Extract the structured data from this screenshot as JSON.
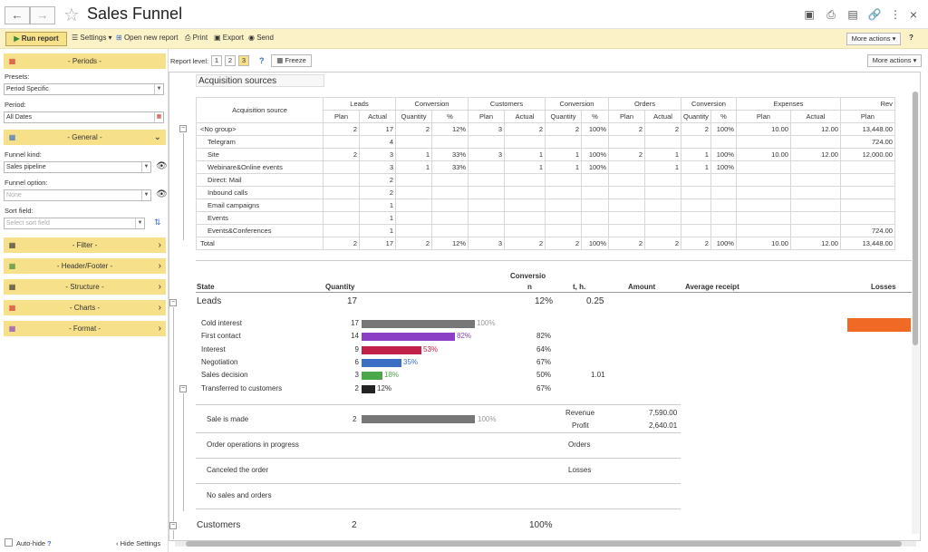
{
  "window": {
    "title": "Sales Funnel"
  },
  "command_bar": {
    "run_report": "Run report",
    "settings": "Settings",
    "open_new_report": "Open new report",
    "print": "Print",
    "export": "Export",
    "send": "Send",
    "more_actions": "More actions",
    "help": "?"
  },
  "report_bar": {
    "report_level_label": "Report level:",
    "levels": [
      "1",
      "2",
      "3"
    ],
    "help": "?",
    "freeze": "Freeze",
    "more_actions": "More actions"
  },
  "sidebar": {
    "periods": "- Periods -",
    "presets_label": "Presets:",
    "presets_value": "Period Specific",
    "period_label": "Period:",
    "period_value": "All Dates",
    "general": "- General -",
    "funnel_kind_label": "Funnel kind:",
    "funnel_kind_value": "Sales pipeline",
    "funnel_option_label": "Funnel option:",
    "funnel_option_placeholder": "None",
    "sort_field_label": "Sort field:",
    "sort_field_placeholder": "Select sort field",
    "filter": "- Filter -",
    "header_footer": "- Header/Footer -",
    "structure": "- Structure -",
    "charts": "- Charts -",
    "format": "- Format -",
    "auto_hide": "Auto-hide",
    "auto_hide_help": "?",
    "hide_settings": "Hide Settings"
  },
  "sources": {
    "title": "Acquisition sources",
    "col_source": "Acquisition source",
    "groups": [
      "Leads",
      "Conversion",
      "Customers",
      "Conversion",
      "Orders",
      "Conversion",
      "Expenses",
      "Rev"
    ],
    "subheaders": [
      "Plan",
      "Actual",
      "Quantity",
      "%",
      "Plan",
      "Actual",
      "Quantity",
      "%",
      "Plan",
      "Actual",
      "Quantity",
      "%",
      "Plan",
      "Actual",
      "Plan"
    ],
    "rows": [
      {
        "name": "<No group>",
        "cells": [
          "2",
          "17",
          "2",
          "12%",
          "3",
          "2",
          "2",
          "100%",
          "2",
          "2",
          "2",
          "100%",
          "10.00",
          "12.00",
          "13,448.00"
        ]
      },
      {
        "name": "Telegram",
        "cells": [
          "",
          "4",
          "",
          "",
          "",
          "",
          "",
          "",
          "",
          "",
          "",
          "",
          "",
          "",
          "724.00"
        ]
      },
      {
        "name": "Site",
        "cells": [
          "2",
          "3",
          "1",
          "33%",
          "3",
          "1",
          "1",
          "100%",
          "2",
          "1",
          "1",
          "100%",
          "10.00",
          "12.00",
          "12,000.00"
        ]
      },
      {
        "name": "Webinare&Online events",
        "cells": [
          "",
          "3",
          "1",
          "33%",
          "",
          "1",
          "1",
          "100%",
          "",
          "1",
          "1",
          "100%",
          "",
          "",
          ""
        ]
      },
      {
        "name": "Direct: Mail",
        "cells": [
          "",
          "2",
          "",
          "",
          "",
          "",
          "",
          "",
          "",
          "",
          "",
          "",
          "",
          "",
          ""
        ]
      },
      {
        "name": "Inbound calls",
        "cells": [
          "",
          "2",
          "",
          "",
          "",
          "",
          "",
          "",
          "",
          "",
          "",
          "",
          "",
          "",
          ""
        ]
      },
      {
        "name": "Email campaigns",
        "cells": [
          "",
          "1",
          "",
          "",
          "",
          "",
          "",
          "",
          "",
          "",
          "",
          "",
          "",
          "",
          ""
        ]
      },
      {
        "name": "Events",
        "cells": [
          "",
          "1",
          "",
          "",
          "",
          "",
          "",
          "",
          "",
          "",
          "",
          "",
          "",
          "",
          ""
        ]
      },
      {
        "name": "Events&Conferences",
        "cells": [
          "",
          "1",
          "",
          "",
          "",
          "",
          "",
          "",
          "",
          "",
          "",
          "",
          "",
          "",
          "724.00"
        ]
      }
    ],
    "total": {
      "name": "Total",
      "cells": [
        "2",
        "17",
        "2",
        "12%",
        "3",
        "2",
        "2",
        "100%",
        "2",
        "2",
        "2",
        "100%",
        "10.00",
        "12.00",
        "13,448.00"
      ]
    }
  },
  "funnel": {
    "headers": {
      "state": "State",
      "quantity": "Quantity",
      "conversion_1": "Conversio",
      "conversion_2": "n",
      "th": "t, h.",
      "amount": "Amount",
      "avg_receipt": "Average receipt",
      "losses": "Losses"
    },
    "leads": {
      "label": "Leads",
      "quantity": "17",
      "conversion": "12%",
      "th": "0.25"
    },
    "stages": [
      {
        "name": "Cold interest",
        "qty": "17",
        "fraction": 1.0,
        "pct": "100%",
        "conv": "",
        "th": "",
        "color": "#777777",
        "pct_color": "#999999"
      },
      {
        "name": "First contact",
        "qty": "14",
        "fraction": 0.82,
        "pct": "82%",
        "conv": "82%",
        "th": "",
        "color": "#8a3fc4",
        "pct_color": "#8a3fc4"
      },
      {
        "name": "Interest",
        "qty": "9",
        "fraction": 0.53,
        "pct": "53%",
        "conv": "64%",
        "th": "",
        "color": "#c2224a",
        "pct_color": "#c2224a"
      },
      {
        "name": "Negotiation",
        "qty": "6",
        "fraction": 0.35,
        "pct": "35%",
        "conv": "67%",
        "th": "",
        "color": "#3a6fc4",
        "pct_color": "#3a6fc4"
      },
      {
        "name": "Sales decision",
        "qty": "3",
        "fraction": 0.18,
        "pct": "18%",
        "conv": "50%",
        "th": "1.01",
        "color": "#4aa84a",
        "pct_color": "#4aa84a"
      },
      {
        "name": "Transferred to customers",
        "qty": "2",
        "fraction": 0.12,
        "pct": "12%",
        "conv": "67%",
        "th": "",
        "color": "#222222",
        "pct_color": "#333333"
      }
    ],
    "loss_bar_color": "#f06a25",
    "sale": {
      "label": "Sale is made",
      "qty": "2",
      "fraction": 1.0,
      "pct": "100%",
      "revenue_label": "Revenue",
      "revenue": "7,590.00",
      "profit_label": "Profit",
      "profit": "2,640.01"
    },
    "in_progress": {
      "label": "Order operations in progress",
      "right": "Orders"
    },
    "canceled": {
      "label": "Canceled the order",
      "right": "Losses"
    },
    "no_sales": {
      "label": "No sales and orders"
    },
    "customers": {
      "label": "Customers",
      "quantity": "2",
      "conversion": "100%"
    }
  }
}
